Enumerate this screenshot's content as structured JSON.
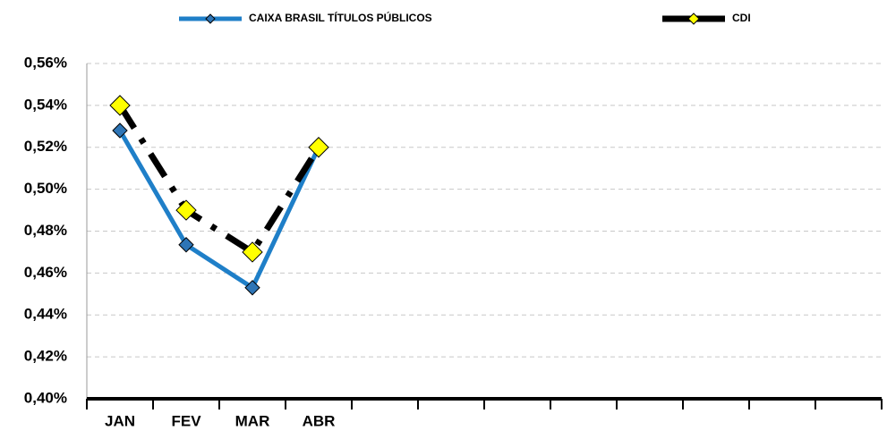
{
  "chart_data": {
    "type": "line",
    "categories": [
      "JAN",
      "FEV",
      "MAR",
      "ABR",
      null,
      null,
      null,
      null,
      null,
      null,
      null,
      null
    ],
    "series": [
      {
        "name": "CAIXA BRASIL TÍTULOS PÚBLICOS",
        "color": "#1f7fc8",
        "marker_color": "#2e75b6",
        "values": [
          0.528,
          0.4735,
          0.453,
          0.52,
          null,
          null,
          null,
          null,
          null,
          null,
          null,
          null
        ]
      },
      {
        "name": "CDI",
        "color": "#000000",
        "marker_color": "#ffff00",
        "dashed": true,
        "values": [
          0.54,
          0.49,
          0.47,
          0.52,
          null,
          null,
          null,
          null,
          null,
          null,
          null,
          null
        ]
      }
    ],
    "ylim": [
      0.4,
      0.56
    ],
    "yticks": [
      {
        "value": 0.4,
        "label": "0,40%"
      },
      {
        "value": 0.42,
        "label": "0,42%"
      },
      {
        "value": 0.44,
        "label": "0,44%"
      },
      {
        "value": 0.46,
        "label": "0,46%"
      },
      {
        "value": 0.48,
        "label": "0,48%"
      },
      {
        "value": 0.5,
        "label": "0,50%"
      },
      {
        "value": 0.52,
        "label": "0,52%"
      },
      {
        "value": 0.54,
        "label": "0,54%"
      },
      {
        "value": 0.56,
        "label": "0,56%"
      }
    ],
    "grid": true,
    "legend": "top"
  }
}
